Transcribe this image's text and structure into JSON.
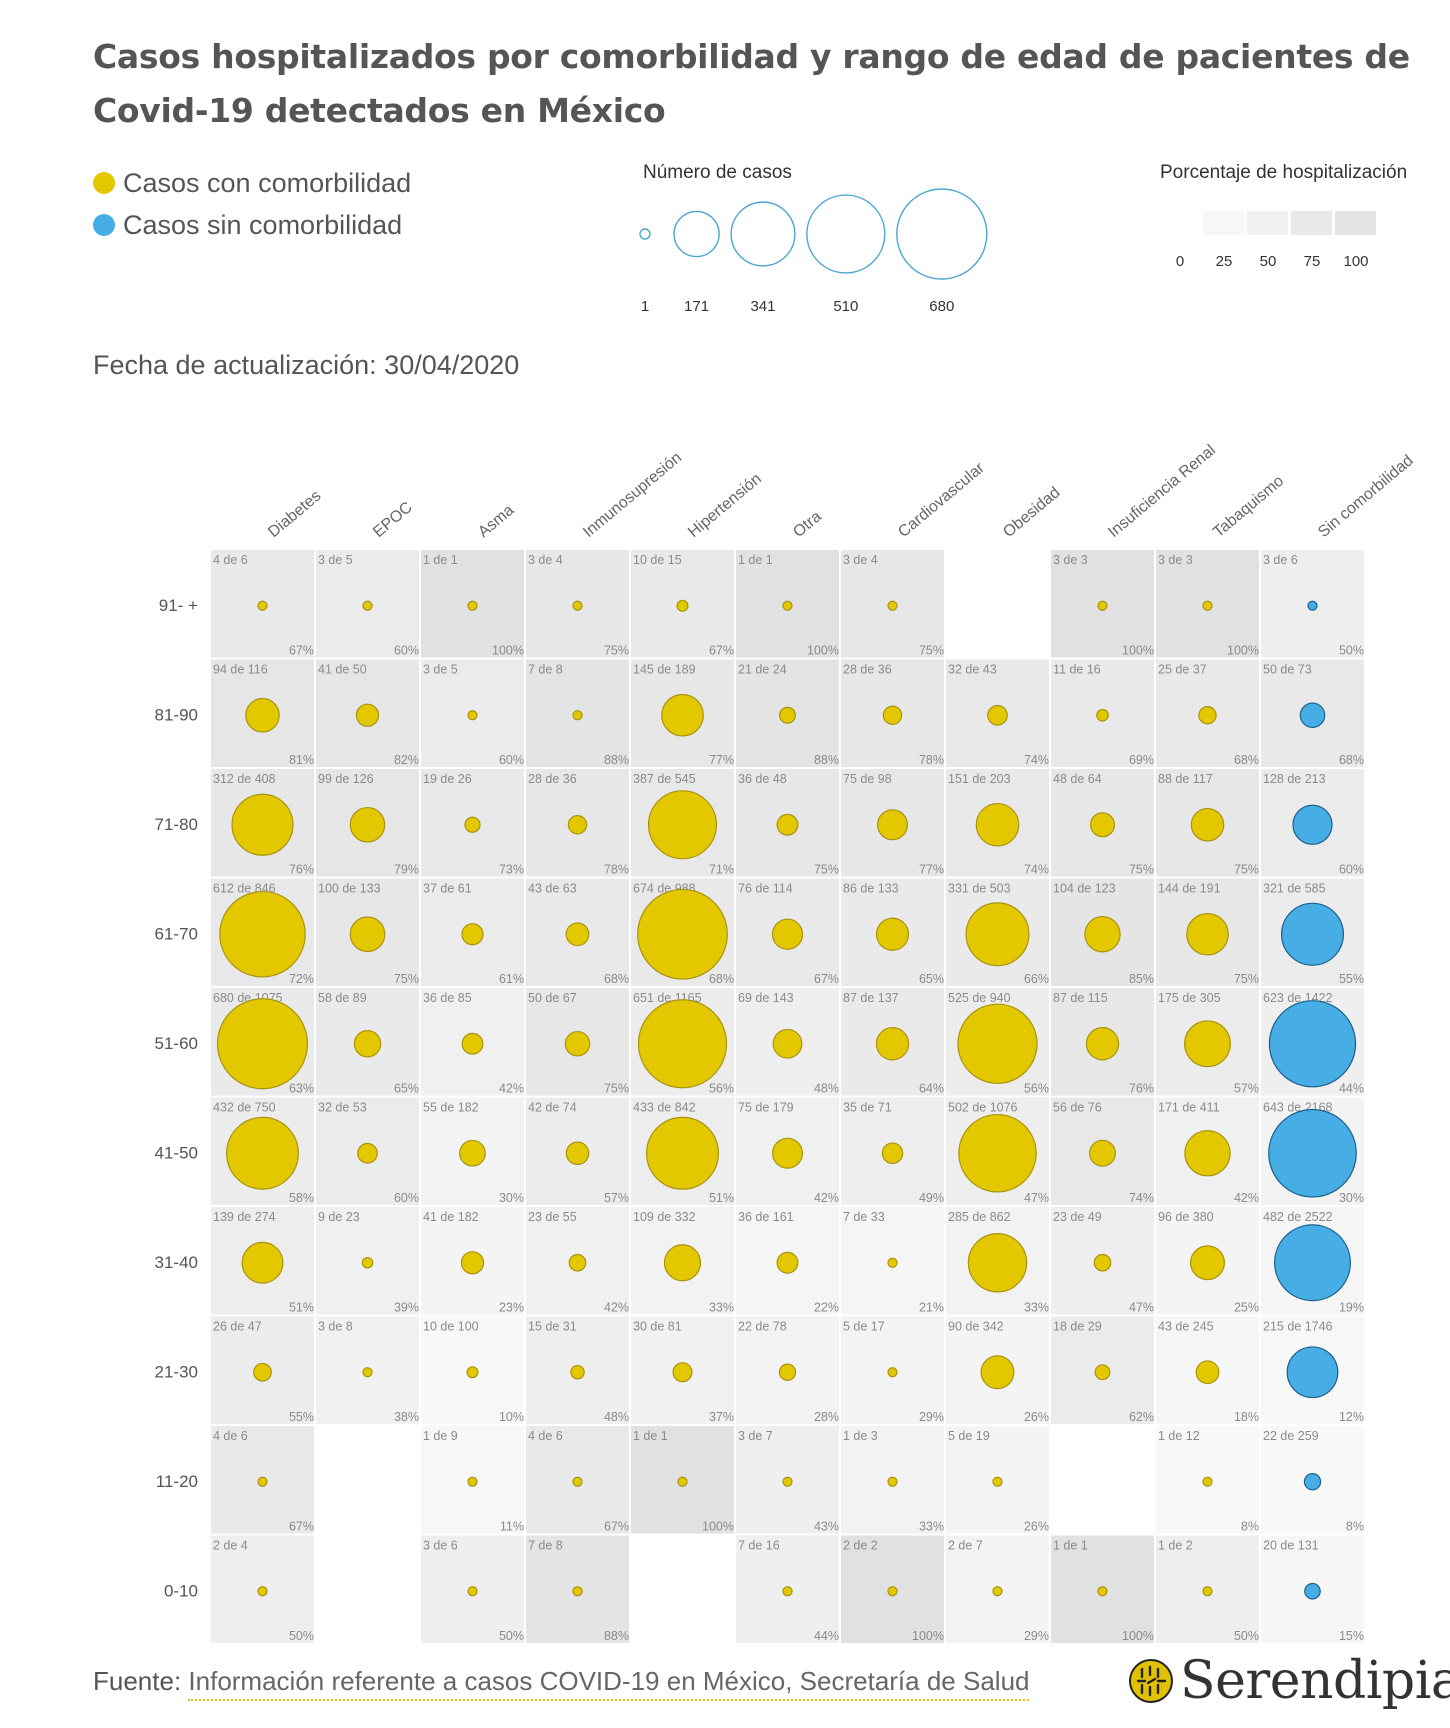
{
  "title": "Casos hospitalizados por comorbilidad y rango de edad de pacientes de Covid-19 detectados en México",
  "legend": {
    "with_comorbidity": "Casos con comorbilidad",
    "without_comorbidity": "Casos sin comorbilidad",
    "size_title": "Número de casos",
    "size_values": [
      1,
      171,
      341,
      510,
      680
    ],
    "pct_title": "Porcentaje de hospitalización",
    "pct_values": [
      0,
      25,
      50,
      75,
      100
    ]
  },
  "updated": "Fecha de actualización: 30/04/2020",
  "footer": {
    "source_label": "Fuente: ",
    "source_text": "Información referente a casos COVID-19 en México, Secretaría de Salud",
    "logo_text": "Serendipia"
  },
  "colors": {
    "with_comorbidity": "#e3c800",
    "with_comorbidity_stroke": "#a89310",
    "without_comorbidity": "#46aee4",
    "without_comorbidity_stroke": "#1d5f8a",
    "size_legend_stroke": "#4ea7cf"
  },
  "chart_data": {
    "type": "bubble-matrix",
    "columns": [
      "Diabetes",
      "EPOC",
      "Asma",
      "Inmunosupresión",
      "Hipertensión",
      "Otra",
      "Cardiovascular",
      "Obesidad",
      "Insuficiencia Renal",
      "Tabaquismo",
      "Sin comorbilidad"
    ],
    "rows": [
      "91- +",
      "81-90",
      "71-80",
      "61-70",
      "51-60",
      "41-50",
      "31-40",
      "21-30",
      "11-20",
      "0-10"
    ],
    "cells": [
      [
        [
          4,
          6
        ],
        [
          3,
          5
        ],
        [
          1,
          1
        ],
        [
          3,
          4
        ],
        [
          10,
          15
        ],
        [
          1,
          1
        ],
        [
          3,
          4
        ],
        null,
        [
          3,
          3
        ],
        [
          3,
          3
        ],
        [
          3,
          6
        ]
      ],
      [
        [
          94,
          116
        ],
        [
          41,
          50
        ],
        [
          3,
          5
        ],
        [
          7,
          8
        ],
        [
          145,
          189
        ],
        [
          21,
          24
        ],
        [
          28,
          36
        ],
        [
          32,
          43
        ],
        [
          11,
          16
        ],
        [
          25,
          37
        ],
        [
          50,
          73
        ]
      ],
      [
        [
          312,
          408
        ],
        [
          99,
          126
        ],
        [
          19,
          26
        ],
        [
          28,
          36
        ],
        [
          387,
          545
        ],
        [
          36,
          48
        ],
        [
          75,
          98
        ],
        [
          151,
          203
        ],
        [
          48,
          64
        ],
        [
          88,
          117
        ],
        [
          128,
          213
        ]
      ],
      [
        [
          612,
          846
        ],
        [
          100,
          133
        ],
        [
          37,
          61
        ],
        [
          43,
          63
        ],
        [
          674,
          988
        ],
        [
          76,
          114
        ],
        [
          86,
          133
        ],
        [
          331,
          503
        ],
        [
          104,
          123
        ],
        [
          144,
          191
        ],
        [
          321,
          585
        ]
      ],
      [
        [
          680,
          1075
        ],
        [
          58,
          89
        ],
        [
          36,
          85
        ],
        [
          50,
          67
        ],
        [
          651,
          1165
        ],
        [
          69,
          143
        ],
        [
          87,
          137
        ],
        [
          525,
          940
        ],
        [
          87,
          115
        ],
        [
          175,
          305
        ],
        [
          623,
          1422
        ]
      ],
      [
        [
          432,
          750
        ],
        [
          32,
          53
        ],
        [
          55,
          182
        ],
        [
          42,
          74
        ],
        [
          433,
          842
        ],
        [
          75,
          179
        ],
        [
          35,
          71
        ],
        [
          502,
          1076
        ],
        [
          56,
          76
        ],
        [
          171,
          411
        ],
        [
          643,
          2168
        ]
      ],
      [
        [
          139,
          274
        ],
        [
          9,
          23
        ],
        [
          41,
          182
        ],
        [
          23,
          55
        ],
        [
          109,
          332
        ],
        [
          36,
          161
        ],
        [
          7,
          33
        ],
        [
          285,
          862
        ],
        [
          23,
          49
        ],
        [
          96,
          380
        ],
        [
          482,
          2522
        ]
      ],
      [
        [
          26,
          47
        ],
        [
          3,
          8
        ],
        [
          10,
          100
        ],
        [
          15,
          31
        ],
        [
          30,
          81
        ],
        [
          22,
          78
        ],
        [
          5,
          17
        ],
        [
          90,
          342
        ],
        [
          18,
          29
        ],
        [
          43,
          245
        ],
        [
          215,
          1746
        ]
      ],
      [
        [
          4,
          6
        ],
        null,
        [
          1,
          9
        ],
        [
          4,
          6
        ],
        [
          1,
          1
        ],
        [
          3,
          7
        ],
        [
          1,
          3
        ],
        [
          5,
          19
        ],
        null,
        [
          1,
          12
        ],
        [
          22,
          259
        ]
      ],
      [
        [
          2,
          4
        ],
        null,
        [
          3,
          6
        ],
        [
          7,
          8
        ],
        null,
        [
          7,
          16
        ],
        [
          2,
          2
        ],
        [
          2,
          7
        ],
        [
          1,
          1
        ],
        [
          1,
          2
        ],
        [
          20,
          131
        ]
      ]
    ],
    "percentages": [
      [
        "67%",
        "60%",
        "100%",
        "75%",
        "67%",
        "100%",
        "75%",
        null,
        "100%",
        "100%",
        "50%"
      ],
      [
        "81%",
        "82%",
        "60%",
        "88%",
        "77%",
        "88%",
        "78%",
        "74%",
        "69%",
        "68%",
        "68%"
      ],
      [
        "76%",
        "79%",
        "73%",
        "78%",
        "71%",
        "75%",
        "77%",
        "74%",
        "75%",
        "75%",
        "60%"
      ],
      [
        "72%",
        "75%",
        "61%",
        "68%",
        "68%",
        "67%",
        "65%",
        "66%",
        "85%",
        "75%",
        "55%"
      ],
      [
        "63%",
        "65%",
        "42%",
        "75%",
        "56%",
        "48%",
        "64%",
        "56%",
        "76%",
        "57%",
        "44%"
      ],
      [
        "58%",
        "60%",
        "30%",
        "57%",
        "51%",
        "42%",
        "49%",
        "47%",
        "74%",
        "42%",
        "30%"
      ],
      [
        "51%",
        "39%",
        "23%",
        "42%",
        "33%",
        "22%",
        "21%",
        "33%",
        "47%",
        "25%",
        "19%"
      ],
      [
        "55%",
        "38%",
        "10%",
        "48%",
        "37%",
        "28%",
        "29%",
        "26%",
        "62%",
        "18%",
        "12%"
      ],
      [
        "67%",
        null,
        "11%",
        "67%",
        "100%",
        "43%",
        "33%",
        "26%",
        null,
        "8%",
        "8%"
      ],
      [
        "50%",
        null,
        "50%",
        "88%",
        null,
        "44%",
        "100%",
        "29%",
        "100%",
        "50%",
        "15%"
      ]
    ],
    "size_max_cases": 680,
    "pct_range": [
      0,
      100
    ]
  }
}
